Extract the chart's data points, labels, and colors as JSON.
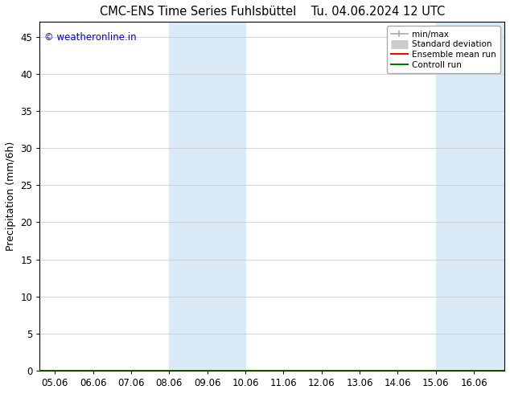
{
  "title_left": "CMC-ENS Time Series Fuhlsbüttel",
  "title_right": "Tu. 04.06.2024 12 UTC",
  "ylabel": "Precipitation (mm/6h)",
  "watermark": "© weatheronline.in",
  "watermark_color": "#0000dd",
  "xlim_left": 4.6,
  "xlim_right": 16.8,
  "ylim_bottom": 0,
  "ylim_top": 47,
  "yticks": [
    0,
    5,
    10,
    15,
    20,
    25,
    30,
    35,
    40,
    45
  ],
  "xtick_labels": [
    "05.06",
    "06.06",
    "07.06",
    "08.06",
    "09.06",
    "10.06",
    "11.06",
    "12.06",
    "13.06",
    "14.06",
    "15.06",
    "16.06"
  ],
  "xtick_positions": [
    5,
    6,
    7,
    8,
    9,
    10,
    11,
    12,
    13,
    14,
    15,
    16
  ],
  "shaded_bands": [
    {
      "x_start": 8.0,
      "x_end": 10.0,
      "color": "#daeaf6"
    },
    {
      "x_start": 15.0,
      "x_end": 16.8,
      "color": "#daeaf6"
    }
  ],
  "legend_entries": [
    {
      "label": "min/max",
      "color": "#aaaaaa",
      "lw": 1.2,
      "ls": "-",
      "type": "line_caps"
    },
    {
      "label": "Standard deviation",
      "color": "#cccccc",
      "lw": 8,
      "ls": "-",
      "type": "thick_line"
    },
    {
      "label": "Ensemble mean run",
      "color": "#ff0000",
      "lw": 1.5,
      "ls": "-",
      "type": "line"
    },
    {
      "label": "Controll run",
      "color": "#007700",
      "lw": 1.5,
      "ls": "-",
      "type": "line"
    }
  ],
  "bg_color": "#ffffff",
  "plot_bg_color": "#ffffff",
  "grid_color": "#cccccc",
  "spine_color": "#000000",
  "tick_fontsize": 8.5,
  "label_fontsize": 9,
  "title_fontsize": 10.5,
  "watermark_fontsize": 8.5
}
